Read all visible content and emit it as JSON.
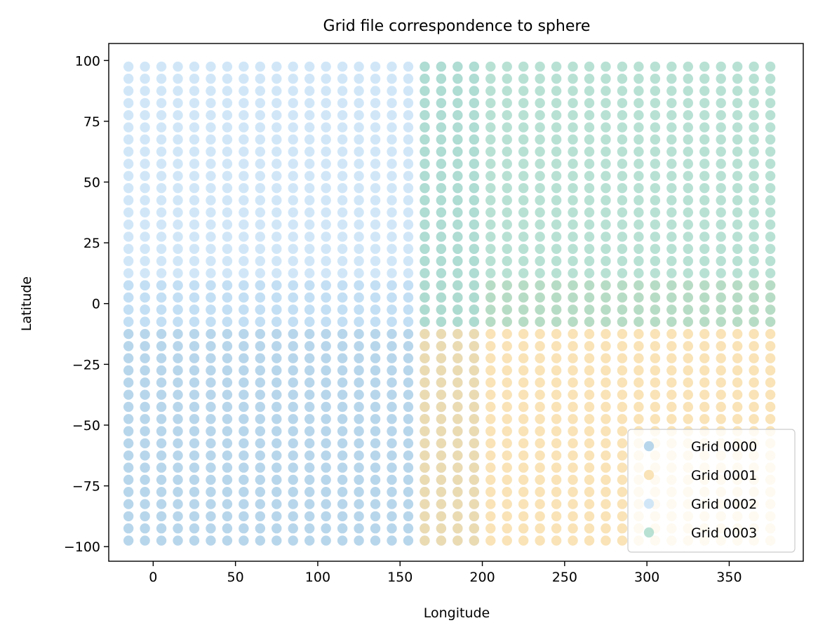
{
  "chart_data": {
    "type": "scatter",
    "title": "Grid file correspondence to sphere",
    "xlabel": "Longitude",
    "ylabel": "Latitude",
    "xlim": [
      -27,
      395
    ],
    "ylim": [
      -106,
      107
    ],
    "xticks": [
      0,
      50,
      100,
      150,
      200,
      250,
      300,
      350
    ],
    "yticks": [
      100,
      75,
      50,
      25,
      0,
      -25,
      -50,
      -75,
      -100
    ],
    "ytick_labels": [
      "100",
      "75",
      "50",
      "25",
      "0",
      "−25",
      "−50",
      "−75",
      "−100"
    ],
    "grid": false,
    "legend": "lower-right",
    "series": [
      {
        "name": "Grid 0000",
        "color": "#a6cce6",
        "opacity": 0.8,
        "x_range": [
          -15,
          195
        ],
        "y_range": [
          -97.5,
          7.5
        ],
        "spacing": 10
      },
      {
        "name": "Grid 0001",
        "color": "#f7dca5",
        "opacity": 0.8,
        "x_range": [
          165,
          375
        ],
        "y_range": [
          -97.5,
          7.5
        ],
        "spacing": 10
      },
      {
        "name": "Grid 0002",
        "color": "#c6e1f6",
        "opacity": 0.8,
        "x_range": [
          -15,
          195
        ],
        "y_range": [
          -7.5,
          97.5
        ],
        "spacing": 10
      },
      {
        "name": "Grid 0003",
        "color": "#a6dac9",
        "opacity": 0.8,
        "x_range": [
          165,
          375
        ],
        "y_range": [
          -7.5,
          97.5
        ],
        "spacing": 10
      }
    ]
  }
}
